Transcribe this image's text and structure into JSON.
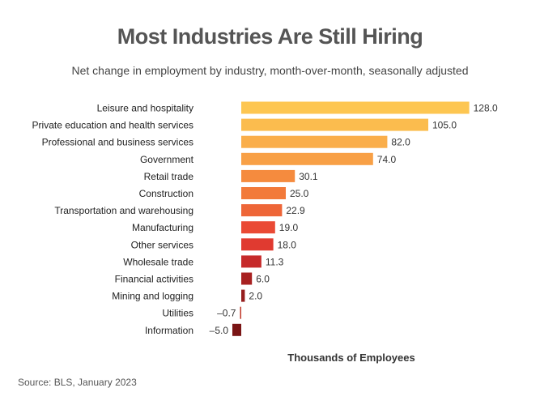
{
  "chart_data": {
    "type": "bar",
    "orientation": "horizontal",
    "title": "Most Industries Are Still Hiring",
    "subtitle": "Net change in employment by industry, month-over-month, seasonally adjusted",
    "xlabel": "Thousands of Employees",
    "ylabel": "",
    "xlim": [
      -5,
      128
    ],
    "grid": false,
    "categories": [
      "Leisure and hospitality",
      "Private education and health services",
      "Professional and business services",
      "Government",
      "Retail trade",
      "Construction",
      "Transportation and warehousing",
      "Manufacturing",
      "Other services",
      "Wholesale trade",
      "Financial activities",
      "Mining and logging",
      "Utilities",
      "Information"
    ],
    "values": [
      128.0,
      105.0,
      82.0,
      74.0,
      30.1,
      25.0,
      22.9,
      19.0,
      18.0,
      11.3,
      6.0,
      2.0,
      -0.7,
      -5.0
    ],
    "value_labels": [
      "128.0",
      "105.0",
      "82.0",
      "74.0",
      "30.1",
      "25.0",
      "22.9",
      "19.0",
      "18.0",
      "11.3",
      "6.0",
      "2.0",
      "–0.7",
      "–5.0"
    ],
    "colors": [
      "#FDC651",
      "#FBBC4E",
      "#FAAE4A",
      "#F8A046",
      "#F58B3E",
      "#F27A3A",
      "#EE6638",
      "#EA4A35",
      "#E03A30",
      "#C62A2A",
      "#A82121",
      "#961E1E",
      "#C0392B",
      "#7A1515"
    ]
  },
  "source": "Source: BLS, January 2023"
}
